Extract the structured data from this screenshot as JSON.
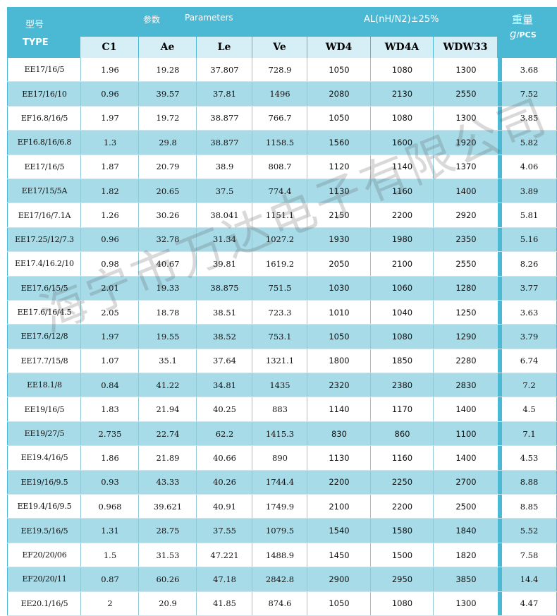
{
  "header": {
    "type_cn": "型号",
    "type_en": "TYPE",
    "params_cn": "参数",
    "params_en": "Parameters",
    "al_label": "AL(nH/N2)±25%",
    "weight_cn": "重量",
    "weight_unit_g": "g",
    "weight_unit_pcs": "/PCS"
  },
  "columns": [
    "C1",
    "Ae",
    "Le",
    "Ve",
    "WD4",
    "WD4A",
    "WDW33"
  ],
  "rows": [
    {
      "type": "EE17/16/5",
      "c1": "1.96",
      "ae": "19.28",
      "le": "37.807",
      "ve": "728.9",
      "wd4": "1050",
      "wd4a": "1080",
      "wdw33": "1300",
      "weight": "3.68"
    },
    {
      "type": "EE17/16/10",
      "c1": "0.96",
      "ae": "39.57",
      "le": "37.81",
      "ve": "1496",
      "wd4": "2080",
      "wd4a": "2130",
      "wdw33": "2550",
      "weight": "7.52"
    },
    {
      "type": "EF16.8/16/5",
      "c1": "1.97",
      "ae": "19.72",
      "le": "38.877",
      "ve": "766.7",
      "wd4": "1050",
      "wd4a": "1080",
      "wdw33": "1300",
      "weight": "3.85"
    },
    {
      "type": "EF16.8/16/6.8",
      "c1": "1.3",
      "ae": "29.8",
      "le": "38.877",
      "ve": "1158.5",
      "wd4": "1560",
      "wd4a": "1600",
      "wdw33": "1920",
      "weight": "5.82"
    },
    {
      "type": "EE17/16/5",
      "c1": "1.87",
      "ae": "20.79",
      "le": "38.9",
      "ve": "808.7",
      "wd4": "1120",
      "wd4a": "1140",
      "wdw33": "1370",
      "weight": "4.06"
    },
    {
      "type": "EE17/15/5A",
      "c1": "1.82",
      "ae": "20.65",
      "le": "37.5",
      "ve": "774.4",
      "wd4": "1130",
      "wd4a": "1160",
      "wdw33": "1400",
      "weight": "3.89"
    },
    {
      "type": "EE17/16/7.1A",
      "c1": "1.26",
      "ae": "30.26",
      "le": "38.041",
      "ve": "1151.1",
      "wd4": "2150",
      "wd4a": "2200",
      "wdw33": "2920",
      "weight": "5.81"
    },
    {
      "type": "EE17.25/12/7.3",
      "c1": "0.96",
      "ae": "32.78",
      "le": "31.34",
      "ve": "1027.2",
      "wd4": "1930",
      "wd4a": "1980",
      "wdw33": "2350",
      "weight": "5.16"
    },
    {
      "type": "EE17.4/16.2/10",
      "c1": "0.98",
      "ae": "40.67",
      "le": "39.81",
      "ve": "1619.2",
      "wd4": "2050",
      "wd4a": "2100",
      "wdw33": "2550",
      "weight": "8.26"
    },
    {
      "type": "EE17.6/15/5",
      "c1": "2.01",
      "ae": "19.33",
      "le": "38.875",
      "ve": "751.5",
      "wd4": "1030",
      "wd4a": "1060",
      "wdw33": "1280",
      "weight": "3.77"
    },
    {
      "type": "EE17.6/16/4.5",
      "c1": "2.05",
      "ae": "18.78",
      "le": "38.51",
      "ve": "723.3",
      "wd4": "1010",
      "wd4a": "1040",
      "wdw33": "1250",
      "weight": "3.63"
    },
    {
      "type": "EE17.6/12/8",
      "c1": "1.97",
      "ae": "19.55",
      "le": "38.52",
      "ve": "753.1",
      "wd4": "1050",
      "wd4a": "1080",
      "wdw33": "1290",
      "weight": "3.79"
    },
    {
      "type": "EE17.7/15/8",
      "c1": "1.07",
      "ae": "35.1",
      "le": "37.64",
      "ve": "1321.1",
      "wd4": "1800",
      "wd4a": "1850",
      "wdw33": "2280",
      "weight": "6.74"
    },
    {
      "type": "EE18.1/8",
      "c1": "0.84",
      "ae": "41.22",
      "le": "34.81",
      "ve": "1435",
      "wd4": "2320",
      "wd4a": "2380",
      "wdw33": "2830",
      "weight": "7.2"
    },
    {
      "type": "EE19/16/5",
      "c1": "1.83",
      "ae": "21.94",
      "le": "40.25",
      "ve": "883",
      "wd4": "1140",
      "wd4a": "1170",
      "wdw33": "1400",
      "weight": "4.5"
    },
    {
      "type": "EE19/27/5",
      "c1": "2.735",
      "ae": "22.74",
      "le": "62.2",
      "ve": "1415.3",
      "wd4": "830",
      "wd4a": "860",
      "wdw33": "1100",
      "weight": "7.1"
    },
    {
      "type": "EE19.4/16/5",
      "c1": "1.86",
      "ae": "21.89",
      "le": "40.66",
      "ve": "890",
      "wd4": "1130",
      "wd4a": "1160",
      "wdw33": "1400",
      "weight": "4.53"
    },
    {
      "type": "EE19/16/9.5",
      "c1": "0.93",
      "ae": "43.33",
      "le": "40.26",
      "ve": "1744.4",
      "wd4": "2200",
      "wd4a": "2250",
      "wdw33": "2700",
      "weight": "8.88"
    },
    {
      "type": "EE19.4/16/9.5",
      "c1": "0.968",
      "ae": "39.621",
      "le": "40.91",
      "ve": "1749.9",
      "wd4": "2100",
      "wd4a": "2200",
      "wdw33": "2500",
      "weight": "8.85"
    },
    {
      "type": "EE19.5/16/5",
      "c1": "1.31",
      "ae": "28.75",
      "le": "37.55",
      "ve": "1079.5",
      "wd4": "1540",
      "wd4a": "1580",
      "wdw33": "1840",
      "weight": "5.52"
    },
    {
      "type": "EF20/20/06",
      "c1": "1.5",
      "ae": "31.53",
      "le": "47.221",
      "ve": "1488.9",
      "wd4": "1450",
      "wd4a": "1500",
      "wdw33": "1820",
      "weight": "7.58"
    },
    {
      "type": "EF20/20/11",
      "c1": "0.87",
      "ae": "60.26",
      "le": "47.18",
      "ve": "2842.8",
      "wd4": "2900",
      "wd4a": "2950",
      "wdw33": "3850",
      "weight": "14.4"
    },
    {
      "type": "EE20.1/16/5",
      "c1": "2",
      "ae": "20.9",
      "le": "41.85",
      "ve": "874.6",
      "wd4": "1050",
      "wd4a": "1080",
      "wdw33": "1300",
      "weight": "4.47"
    }
  ],
  "watermark": "海宁市万达电子有限公司"
}
